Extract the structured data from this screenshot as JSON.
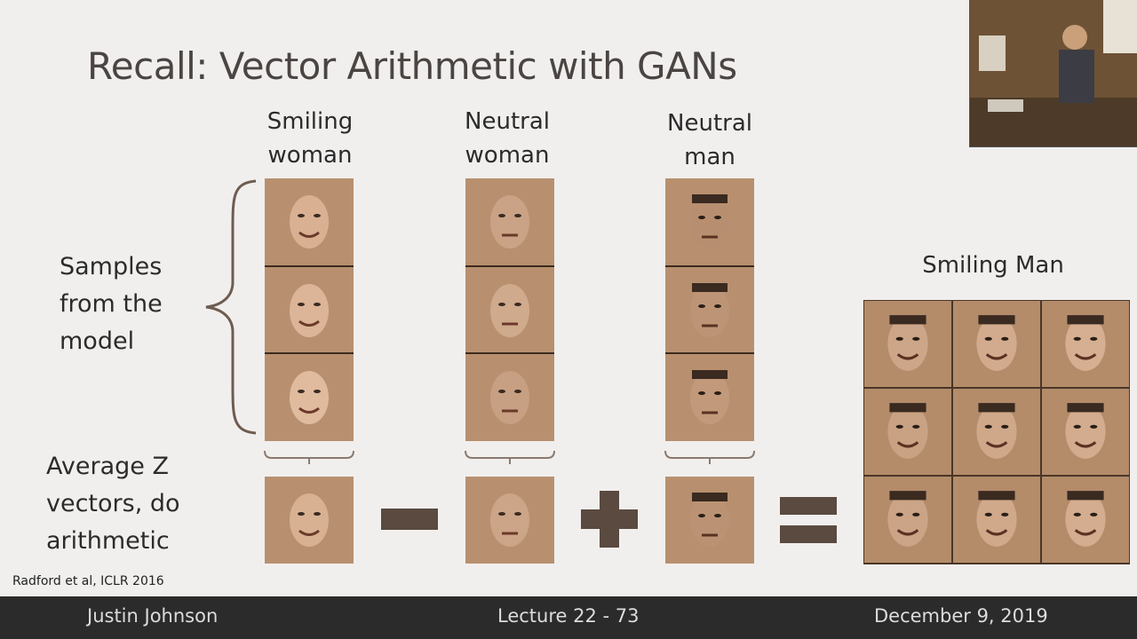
{
  "slide": {
    "title": "Recall: Vector Arithmetic with GANs",
    "columns": [
      {
        "line1": "Smiling",
        "line2": "woman"
      },
      {
        "line1": "Neutral",
        "line2": "woman"
      },
      {
        "line1": "Neutral",
        "line2": "man"
      }
    ],
    "samples_label": {
      "line1": "Samples",
      "line2": "from the",
      "line3": "model"
    },
    "average_label": {
      "line1": "Average Z",
      "line2": "vectors, do",
      "line3": "arithmetic"
    },
    "result_label": "Smiling Man",
    "citation": "Radford et al, ICLR 2016",
    "operators": [
      "minus-icon",
      "plus-icon",
      "equals-icon"
    ]
  },
  "footer": {
    "presenter": "Justin Johnson",
    "lecture": "Lecture 22 - 73",
    "date": "December 9, 2019"
  }
}
